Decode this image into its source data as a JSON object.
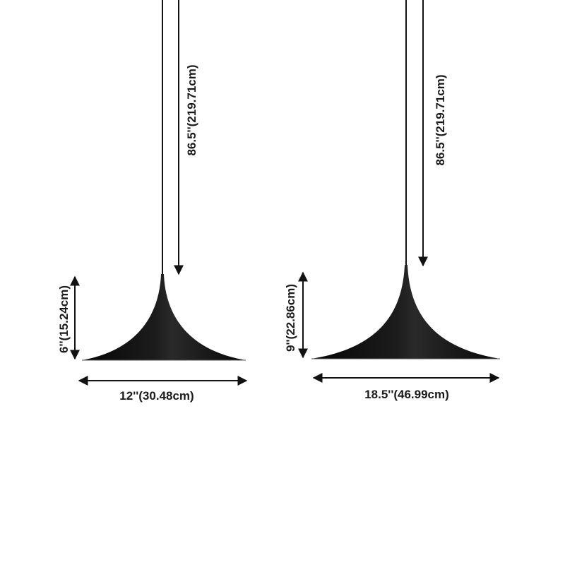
{
  "lamps": [
    {
      "cord_length_label": "86.5''(219.71cm)",
      "height_label": "6''(15.24cm)",
      "width_label": "12''(30.48cm)"
    },
    {
      "cord_length_label": "86.5''(219.71cm)",
      "height_label": "9''(22.86cm)",
      "width_label": "18.5''(46.99cm)"
    }
  ],
  "colors": {
    "lamp_shade": "#0d0d0d",
    "cord": "#111111",
    "arrow": "#111111",
    "background": "#ffffff"
  }
}
